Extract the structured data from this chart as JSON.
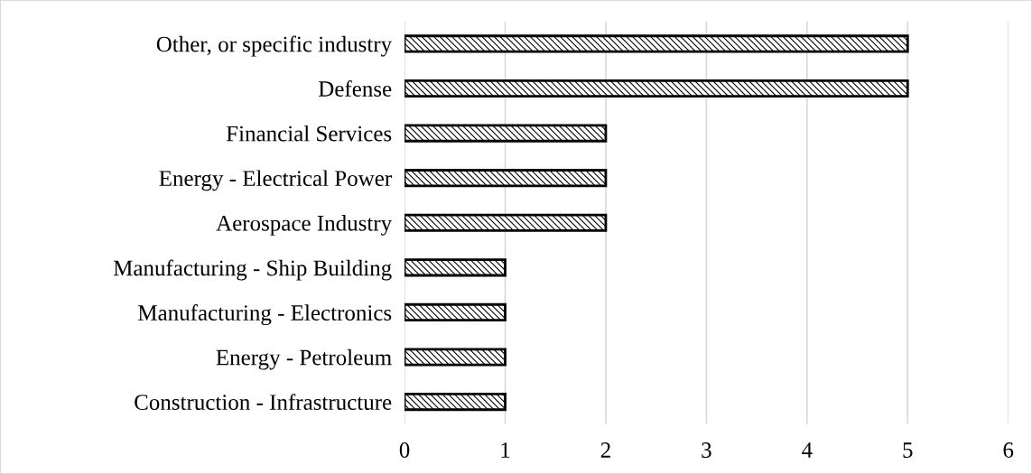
{
  "chart_data": {
    "type": "bar",
    "orientation": "horizontal",
    "categories": [
      "Other, or specific industry",
      "Defense",
      "Financial Services",
      "Energy - Electrical Power",
      "Aerospace Industry",
      "Manufacturing - Ship Building",
      "Manufacturing - Electronics",
      "Energy - Petroleum",
      "Construction - Infrastructure"
    ],
    "values": [
      5,
      5,
      2,
      2,
      2,
      1,
      1,
      1,
      1
    ],
    "color": "#000000",
    "xlim": [
      0,
      6
    ],
    "xticks": [
      0,
      1,
      2,
      3,
      4,
      5,
      6
    ],
    "grid": "x",
    "legend": false
  }
}
